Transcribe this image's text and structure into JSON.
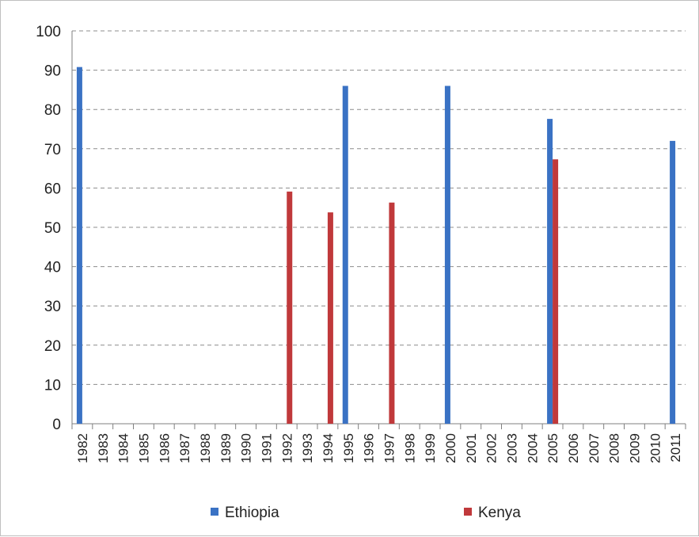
{
  "chart_data": {
    "type": "bar",
    "title": "",
    "xlabel": "",
    "ylabel": "",
    "ylim": [
      0,
      100
    ],
    "yticks": [
      0,
      10,
      20,
      30,
      40,
      50,
      60,
      70,
      80,
      90,
      100
    ],
    "grid": true,
    "legend_position": "bottom",
    "categories": [
      "1982",
      "1983",
      "1984",
      "1985",
      "1986",
      "1987",
      "1988",
      "1989",
      "1990",
      "1991",
      "1992",
      "1993",
      "1994",
      "1995",
      "1996",
      "1997",
      "1998",
      "1999",
      "2000",
      "2001",
      "2002",
      "2003",
      "2004",
      "2005",
      "2006",
      "2007",
      "2008",
      "2009",
      "2010",
      "2011"
    ],
    "series": [
      {
        "name": "Ethiopia",
        "color": "#3a72c4",
        "values": [
          90.8,
          null,
          null,
          null,
          null,
          null,
          null,
          null,
          null,
          null,
          null,
          null,
          null,
          86,
          null,
          null,
          null,
          null,
          86,
          null,
          null,
          null,
          null,
          77.6,
          null,
          null,
          null,
          null,
          null,
          72
        ]
      },
      {
        "name": "Kenya",
        "color": "#c0393b",
        "values": [
          null,
          null,
          null,
          null,
          null,
          null,
          null,
          null,
          null,
          null,
          59.1,
          null,
          53.8,
          null,
          null,
          56.3,
          null,
          null,
          null,
          null,
          null,
          null,
          null,
          67.3,
          null,
          null,
          null,
          null,
          null,
          null
        ]
      }
    ]
  }
}
